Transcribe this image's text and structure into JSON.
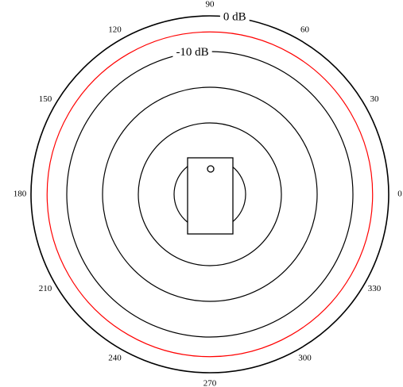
{
  "chart_data": {
    "type": "polar",
    "rlim": [
      -50,
      0
    ],
    "rticks": [
      {
        "value": 0,
        "label": "0 dB"
      },
      {
        "value": -10,
        "label": "-10 dB"
      }
    ],
    "rgrid": [
      -20,
      -30,
      -40
    ],
    "thetaticks": [
      0,
      30,
      60,
      90,
      120,
      150,
      180,
      210,
      240,
      270,
      300,
      330
    ],
    "series": [
      {
        "color": "#ff0000",
        "theta": [
          0,
          30,
          60,
          90,
          120,
          150,
          180,
          210,
          240,
          270,
          300,
          330,
          360
        ],
        "values": [
          -4.5,
          -4.5,
          -4.5,
          -4.5,
          -4.5,
          -4.5,
          -4.5,
          -4.5,
          -4.5,
          -4.5,
          -4.5,
          -4.5,
          -4.5
        ]
      }
    ]
  }
}
